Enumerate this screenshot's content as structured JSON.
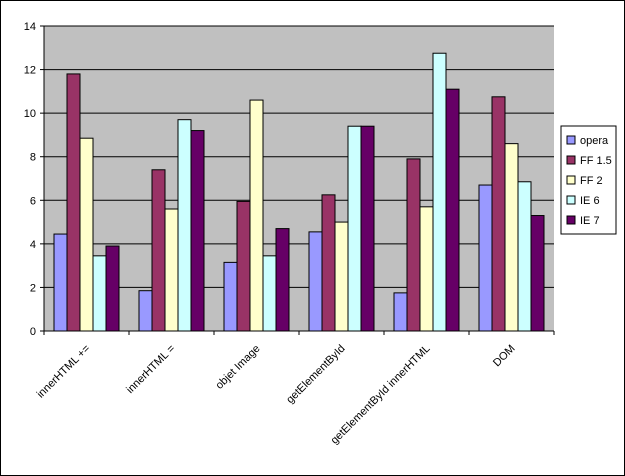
{
  "chart_data": {
    "type": "bar",
    "title": "",
    "xlabel": "",
    "ylabel": "",
    "ylim": [
      0,
      14
    ],
    "ytick_step": 2,
    "yticks": [
      "0",
      "2",
      "4",
      "6",
      "8",
      "10",
      "12",
      "14"
    ],
    "grid": true,
    "legend_position": "right",
    "plot_background": "#c0c0c0",
    "categories": [
      "innerHTML +=",
      "innerHTML =",
      "objet Image",
      "getElementById",
      "getElementById innerHTML",
      "DOM"
    ],
    "series": [
      {
        "name": "opera",
        "color": "#9999ff",
        "values": [
          4.45,
          1.85,
          3.15,
          4.55,
          1.75,
          6.7
        ]
      },
      {
        "name": "FF 1.5",
        "color": "#993366",
        "values": [
          11.8,
          7.4,
          5.95,
          6.25,
          7.9,
          10.75
        ]
      },
      {
        "name": "FF 2",
        "color": "#ffffcc",
        "values": [
          8.85,
          5.6,
          10.6,
          5.0,
          5.7,
          8.6
        ]
      },
      {
        "name": "IE 6",
        "color": "#ccffff",
        "values": [
          3.45,
          9.7,
          3.45,
          9.4,
          12.75,
          6.85
        ]
      },
      {
        "name": "IE 7",
        "color": "#660066",
        "values": [
          3.9,
          9.2,
          4.7,
          9.4,
          11.1,
          5.3
        ]
      }
    ]
  }
}
